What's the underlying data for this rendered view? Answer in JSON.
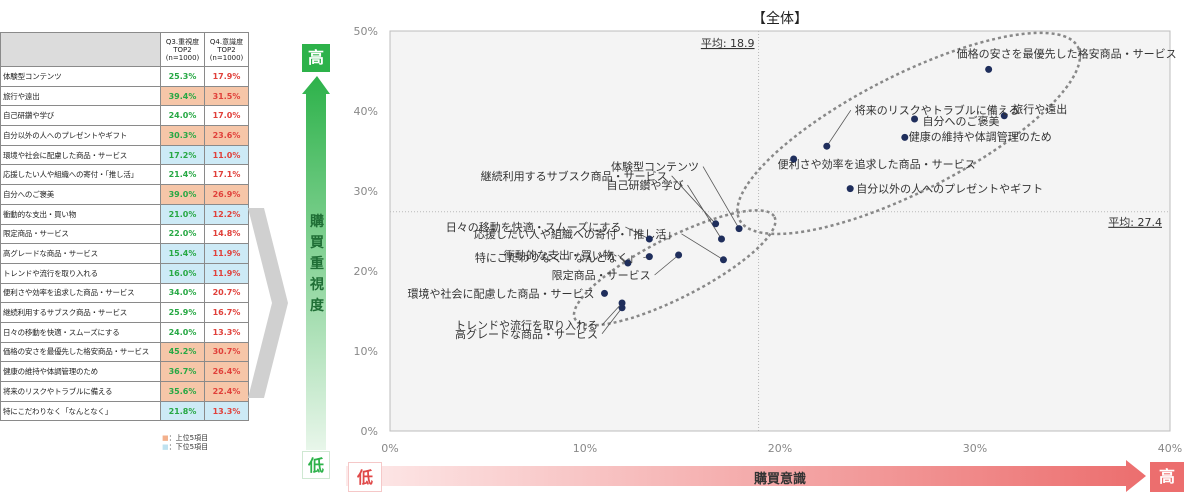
{
  "table": {
    "col1_header": [
      "Q3.重視度",
      "TOP2",
      "(n=1000)"
    ],
    "col2_header": [
      "Q4.意識度",
      "TOP2",
      "(n=1000)"
    ],
    "rows": [
      {
        "label": "体験型コンテンツ",
        "q3": "25.3%",
        "q4": "17.9%",
        "tier": "none"
      },
      {
        "label": "旅行や遠出",
        "q3": "39.4%",
        "q4": "31.5%",
        "tier": "top"
      },
      {
        "label": "自己研鑽や学び",
        "q3": "24.0%",
        "q4": "17.0%",
        "tier": "none"
      },
      {
        "label": "自分以外の人へのプレゼントやギフト",
        "q3": "30.3%",
        "q4": "23.6%",
        "tier": "top"
      },
      {
        "label": "環境や社会に配慮した商品・サービス",
        "q3": "17.2%",
        "q4": "11.0%",
        "tier": "bottom"
      },
      {
        "label": "応援したい人や組織への寄付・「推し活」",
        "q3": "21.4%",
        "q4": "17.1%",
        "tier": "none"
      },
      {
        "label": "自分へのご褒美",
        "q3": "39.0%",
        "q4": "26.9%",
        "tier": "top"
      },
      {
        "label": "衝動的な支出・買い物",
        "q3": "21.0%",
        "q4": "12.2%",
        "tier": "bottom"
      },
      {
        "label": "限定商品・サービス",
        "q3": "22.0%",
        "q4": "14.8%",
        "tier": "none"
      },
      {
        "label": "高グレードな商品・サービス",
        "q3": "15.4%",
        "q4": "11.9%",
        "tier": "bottom"
      },
      {
        "label": "トレンドや流行を取り入れる",
        "q3": "16.0%",
        "q4": "11.9%",
        "tier": "bottom"
      },
      {
        "label": "便利さや効率を追求した商品・サービス",
        "q3": "34.0%",
        "q4": "20.7%",
        "tier": "none"
      },
      {
        "label": "継続利用するサブスク商品・サービス",
        "q3": "25.9%",
        "q4": "16.7%",
        "tier": "none"
      },
      {
        "label": "日々の移動を快適・スムーズにする",
        "q3": "24.0%",
        "q4": "13.3%",
        "tier": "none"
      },
      {
        "label": "価格の安さを最優先した格安商品・サービス",
        "q3": "45.2%",
        "q4": "30.7%",
        "tier": "top"
      },
      {
        "label": "健康の維持や体調管理のため",
        "q3": "36.7%",
        "q4": "26.4%",
        "tier": "top"
      },
      {
        "label": "将来のリスクやトラブルに備える",
        "q3": "35.6%",
        "q4": "22.4%",
        "tier": "top"
      },
      {
        "label": "特にこだわりなく「なんとなく」",
        "q3": "21.8%",
        "q4": "13.3%",
        "tier": "bottom"
      }
    ],
    "legend_top": "：上位5項目",
    "legend_bottom": "：下位5項目",
    "colors": {
      "top": "#f6c6a8",
      "bottom": "#cdeaf6",
      "q3_text": "#27a844",
      "q4_text": "#e0403a"
    }
  },
  "axes_labels": {
    "y_title": "購買重視度",
    "y_high": "高",
    "y_low": "低",
    "x_title": "購買意識",
    "x_high": "高",
    "x_low": "低"
  },
  "chart_data": {
    "type": "scatter",
    "title": "【全体】",
    "xlabel": "購買意識",
    "ylabel": "購買重視度",
    "xlim": [
      0,
      40
    ],
    "ylim": [
      0,
      50
    ],
    "x_ticks": [
      "0%",
      "10%",
      "20%",
      "30%",
      "40%"
    ],
    "y_ticks": [
      "0%",
      "10%",
      "20%",
      "30%",
      "40%",
      "50%"
    ],
    "avg_x": {
      "value": 18.9,
      "label": "平均: 18.9"
    },
    "avg_y": {
      "value": 27.4,
      "label": "平均: 27.4"
    },
    "grid": false,
    "points": [
      {
        "label": "体験型コンテンツ",
        "x": 17.9,
        "y": 25.3
      },
      {
        "label": "旅行や遠出",
        "x": 31.5,
        "y": 39.4
      },
      {
        "label": "自己研鑽や学び",
        "x": 17.0,
        "y": 24.0
      },
      {
        "label": "自分以外の人へのプレゼントやギフト",
        "x": 23.6,
        "y": 30.3
      },
      {
        "label": "環境や社会に配慮した商品・サービス",
        "x": 11.0,
        "y": 17.2
      },
      {
        "label": "応援したい人や組織への寄付・「推し活」",
        "x": 17.1,
        "y": 21.4
      },
      {
        "label": "自分へのご褒美",
        "x": 26.9,
        "y": 39.0
      },
      {
        "label": "衝動的な支出・買い物",
        "x": 12.2,
        "y": 21.0
      },
      {
        "label": "限定商品・サービス",
        "x": 14.8,
        "y": 22.0
      },
      {
        "label": "高グレードな商品・サービス",
        "x": 11.9,
        "y": 15.4
      },
      {
        "label": "トレンドや流行を取り入れる",
        "x": 11.9,
        "y": 16.0
      },
      {
        "label": "便利さや効率を追求した商品・サービス",
        "x": 20.7,
        "y": 34.0
      },
      {
        "label": "継続利用するサブスク商品・サービス",
        "x": 16.7,
        "y": 25.9
      },
      {
        "label": "日々の移動を快適・スムーズにする",
        "x": 13.3,
        "y": 24.0
      },
      {
        "label": "価格の安さを最優先した格安商品・サービス",
        "x": 30.7,
        "y": 45.2
      },
      {
        "label": "健康の維持や体調管理のため",
        "x": 26.4,
        "y": 36.7
      },
      {
        "label": "将来のリスクやトラブルに備える",
        "x": 22.4,
        "y": 35.6
      },
      {
        "label": "特にこだわりなく「なんとなく」",
        "x": 13.3,
        "y": 21.8
      }
    ]
  }
}
